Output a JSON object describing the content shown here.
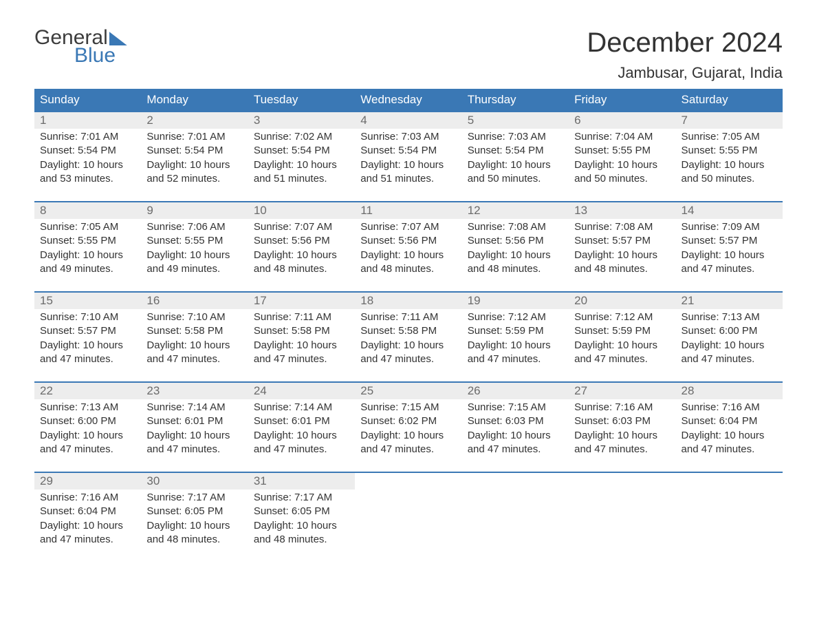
{
  "logo": {
    "text1": "General",
    "text2": "Blue"
  },
  "title": "December 2024",
  "location": "Jambusar, Gujarat, India",
  "colors": {
    "header_bg": "#3a78b5",
    "header_text": "#ffffff",
    "daynum_bg": "#ededed",
    "daynum_text": "#6b6b6b",
    "body_text": "#333333",
    "row_border": "#3a78b5"
  },
  "fonts": {
    "month_title_pt": 40,
    "location_pt": 22,
    "weekday_pt": 17,
    "daynum_pt": 17,
    "cell_pt": 15
  },
  "weekdays": [
    "Sunday",
    "Monday",
    "Tuesday",
    "Wednesday",
    "Thursday",
    "Friday",
    "Saturday"
  ],
  "weeks": [
    [
      {
        "day": "1",
        "sunrise": "7:01 AM",
        "sunset": "5:54 PM",
        "daylight": "10 hours and 53 minutes."
      },
      {
        "day": "2",
        "sunrise": "7:01 AM",
        "sunset": "5:54 PM",
        "daylight": "10 hours and 52 minutes."
      },
      {
        "day": "3",
        "sunrise": "7:02 AM",
        "sunset": "5:54 PM",
        "daylight": "10 hours and 51 minutes."
      },
      {
        "day": "4",
        "sunrise": "7:03 AM",
        "sunset": "5:54 PM",
        "daylight": "10 hours and 51 minutes."
      },
      {
        "day": "5",
        "sunrise": "7:03 AM",
        "sunset": "5:54 PM",
        "daylight": "10 hours and 50 minutes."
      },
      {
        "day": "6",
        "sunrise": "7:04 AM",
        "sunset": "5:55 PM",
        "daylight": "10 hours and 50 minutes."
      },
      {
        "day": "7",
        "sunrise": "7:05 AM",
        "sunset": "5:55 PM",
        "daylight": "10 hours and 50 minutes."
      }
    ],
    [
      {
        "day": "8",
        "sunrise": "7:05 AM",
        "sunset": "5:55 PM",
        "daylight": "10 hours and 49 minutes."
      },
      {
        "day": "9",
        "sunrise": "7:06 AM",
        "sunset": "5:55 PM",
        "daylight": "10 hours and 49 minutes."
      },
      {
        "day": "10",
        "sunrise": "7:07 AM",
        "sunset": "5:56 PM",
        "daylight": "10 hours and 48 minutes."
      },
      {
        "day": "11",
        "sunrise": "7:07 AM",
        "sunset": "5:56 PM",
        "daylight": "10 hours and 48 minutes."
      },
      {
        "day": "12",
        "sunrise": "7:08 AM",
        "sunset": "5:56 PM",
        "daylight": "10 hours and 48 minutes."
      },
      {
        "day": "13",
        "sunrise": "7:08 AM",
        "sunset": "5:57 PM",
        "daylight": "10 hours and 48 minutes."
      },
      {
        "day": "14",
        "sunrise": "7:09 AM",
        "sunset": "5:57 PM",
        "daylight": "10 hours and 47 minutes."
      }
    ],
    [
      {
        "day": "15",
        "sunrise": "7:10 AM",
        "sunset": "5:57 PM",
        "daylight": "10 hours and 47 minutes."
      },
      {
        "day": "16",
        "sunrise": "7:10 AM",
        "sunset": "5:58 PM",
        "daylight": "10 hours and 47 minutes."
      },
      {
        "day": "17",
        "sunrise": "7:11 AM",
        "sunset": "5:58 PM",
        "daylight": "10 hours and 47 minutes."
      },
      {
        "day": "18",
        "sunrise": "7:11 AM",
        "sunset": "5:58 PM",
        "daylight": "10 hours and 47 minutes."
      },
      {
        "day": "19",
        "sunrise": "7:12 AM",
        "sunset": "5:59 PM",
        "daylight": "10 hours and 47 minutes."
      },
      {
        "day": "20",
        "sunrise": "7:12 AM",
        "sunset": "5:59 PM",
        "daylight": "10 hours and 47 minutes."
      },
      {
        "day": "21",
        "sunrise": "7:13 AM",
        "sunset": "6:00 PM",
        "daylight": "10 hours and 47 minutes."
      }
    ],
    [
      {
        "day": "22",
        "sunrise": "7:13 AM",
        "sunset": "6:00 PM",
        "daylight": "10 hours and 47 minutes."
      },
      {
        "day": "23",
        "sunrise": "7:14 AM",
        "sunset": "6:01 PM",
        "daylight": "10 hours and 47 minutes."
      },
      {
        "day": "24",
        "sunrise": "7:14 AM",
        "sunset": "6:01 PM",
        "daylight": "10 hours and 47 minutes."
      },
      {
        "day": "25",
        "sunrise": "7:15 AM",
        "sunset": "6:02 PM",
        "daylight": "10 hours and 47 minutes."
      },
      {
        "day": "26",
        "sunrise": "7:15 AM",
        "sunset": "6:03 PM",
        "daylight": "10 hours and 47 minutes."
      },
      {
        "day": "27",
        "sunrise": "7:16 AM",
        "sunset": "6:03 PM",
        "daylight": "10 hours and 47 minutes."
      },
      {
        "day": "28",
        "sunrise": "7:16 AM",
        "sunset": "6:04 PM",
        "daylight": "10 hours and 47 minutes."
      }
    ],
    [
      {
        "day": "29",
        "sunrise": "7:16 AM",
        "sunset": "6:04 PM",
        "daylight": "10 hours and 47 minutes."
      },
      {
        "day": "30",
        "sunrise": "7:17 AM",
        "sunset": "6:05 PM",
        "daylight": "10 hours and 48 minutes."
      },
      {
        "day": "31",
        "sunrise": "7:17 AM",
        "sunset": "6:05 PM",
        "daylight": "10 hours and 48 minutes."
      },
      null,
      null,
      null,
      null
    ]
  ],
  "labels": {
    "sunrise": "Sunrise:",
    "sunset": "Sunset:",
    "daylight": "Daylight:"
  }
}
